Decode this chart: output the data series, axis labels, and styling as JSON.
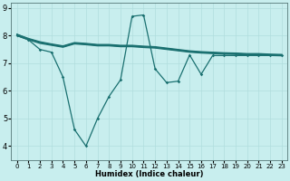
{
  "xlabel": "Humidex (Indice chaleur)",
  "bg_color": "#c8eeee",
  "grid_color": "#b0dddd",
  "line_color": "#1a7070",
  "xlim": [
    -0.5,
    23.5
  ],
  "ylim": [
    3.5,
    9.2
  ],
  "xticks": [
    0,
    1,
    2,
    3,
    4,
    5,
    6,
    7,
    8,
    9,
    10,
    11,
    12,
    13,
    14,
    15,
    16,
    17,
    18,
    19,
    20,
    21,
    22,
    23
  ],
  "yticks": [
    4,
    5,
    6,
    7,
    8,
    9
  ],
  "line1_x": [
    0,
    1,
    2,
    3,
    4,
    5,
    6,
    7,
    8,
    9,
    10,
    11,
    12,
    13,
    14,
    15,
    16,
    17,
    18,
    19,
    20,
    21,
    22,
    23
  ],
  "line1_y": [
    8.05,
    7.9,
    7.78,
    7.7,
    7.63,
    7.75,
    7.72,
    7.68,
    7.68,
    7.65,
    7.65,
    7.62,
    7.6,
    7.55,
    7.5,
    7.45,
    7.42,
    7.4,
    7.38,
    7.37,
    7.35,
    7.35,
    7.33,
    7.32
  ],
  "line2_x": [
    0,
    1,
    2,
    3,
    4,
    5,
    6,
    7,
    8,
    9,
    10,
    11,
    12,
    13,
    14,
    15,
    16,
    17,
    18,
    19,
    20,
    21,
    22,
    23
  ],
  "line2_y": [
    8.0,
    7.85,
    7.72,
    7.65,
    7.58,
    7.7,
    7.67,
    7.63,
    7.63,
    7.6,
    7.6,
    7.57,
    7.55,
    7.5,
    7.45,
    7.4,
    7.37,
    7.35,
    7.33,
    7.32,
    7.3,
    7.3,
    7.28,
    7.27
  ],
  "line3_x": [
    0,
    1,
    2,
    3,
    4,
    5,
    6,
    7,
    8,
    9,
    10,
    11,
    12,
    13,
    14,
    15,
    16,
    17,
    18,
    19,
    20,
    21,
    22,
    23
  ],
  "line3_y": [
    8.02,
    7.87,
    7.75,
    7.67,
    7.6,
    7.72,
    7.69,
    7.65,
    7.65,
    7.62,
    7.62,
    7.59,
    7.57,
    7.52,
    7.47,
    7.42,
    7.39,
    7.37,
    7.35,
    7.34,
    7.32,
    7.32,
    7.3,
    7.29
  ],
  "line4_x": [
    0,
    1,
    2,
    3,
    4,
    5,
    6,
    7,
    8,
    9,
    10,
    11,
    12,
    13,
    14,
    15,
    16,
    17,
    18,
    19,
    20,
    21,
    22,
    23
  ],
  "line4_y": [
    8.05,
    7.88,
    7.76,
    7.68,
    7.61,
    7.73,
    7.7,
    7.66,
    7.66,
    7.63,
    7.63,
    7.6,
    7.58,
    7.53,
    7.48,
    7.43,
    7.4,
    7.38,
    7.36,
    7.35,
    7.33,
    7.33,
    7.31,
    7.3
  ],
  "noise_x": [
    0,
    1,
    2,
    3,
    4,
    5,
    6,
    7,
    8,
    9,
    10,
    11,
    12,
    13,
    14,
    15,
    16,
    17,
    18,
    19,
    20,
    21,
    22,
    23
  ],
  "noise_y": [
    8.0,
    7.85,
    7.5,
    7.4,
    6.5,
    4.6,
    4.0,
    5.0,
    5.8,
    6.4,
    8.7,
    8.75,
    6.8,
    6.3,
    6.35,
    7.3,
    6.6,
    7.28,
    7.28,
    7.28,
    7.28,
    7.28,
    7.28,
    7.28
  ]
}
